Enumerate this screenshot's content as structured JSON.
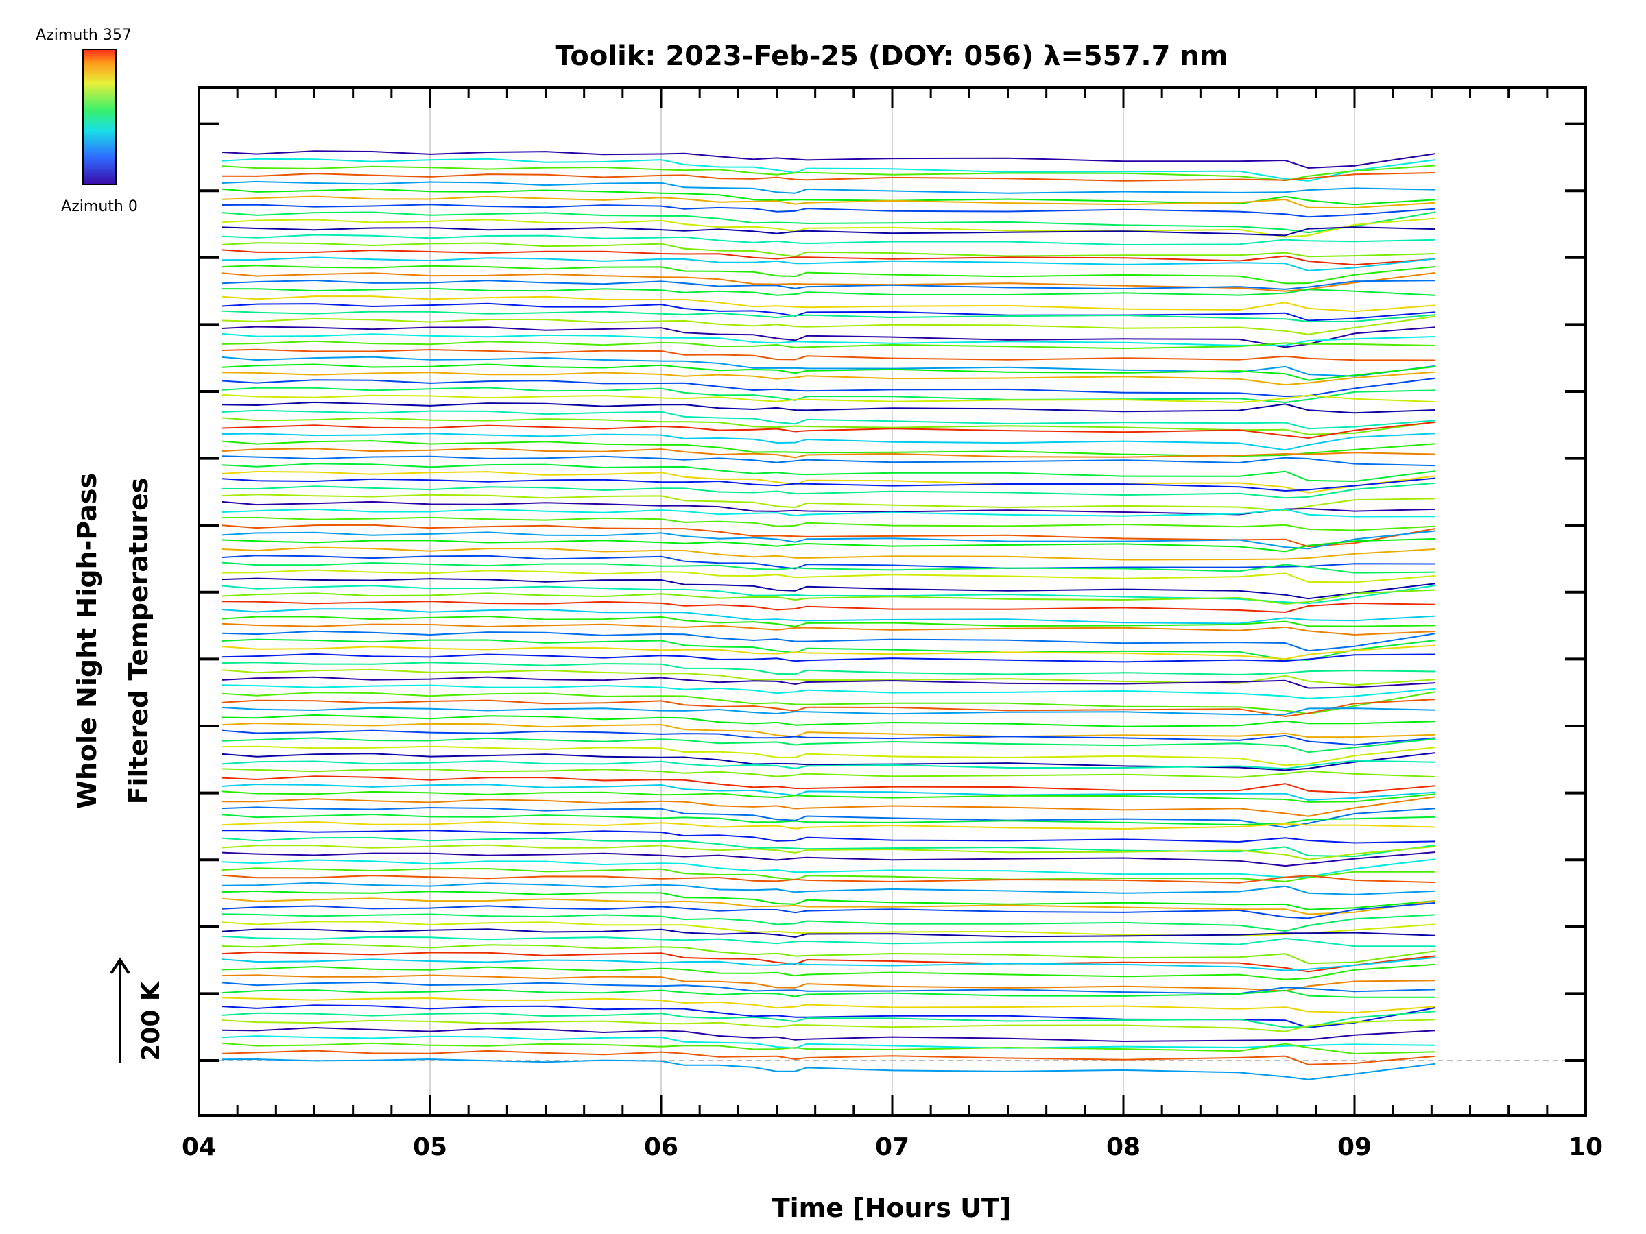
{
  "chart_data": {
    "type": "line",
    "title": "Toolik: 2023-Feb-25 (DOY: 056) λ=557.7 nm",
    "xlabel": "Time [Hours UT]",
    "ylabel_line1": "Whole Night High-Pass",
    "ylabel_line2": "Filtered Temperatures",
    "xlim": [
      4,
      10
    ],
    "xticks": [
      "04",
      "05",
      "06",
      "07",
      "08",
      "09",
      "10"
    ],
    "grid": true,
    "scale_bar_label": "200 K",
    "colorbar": {
      "top_label": "Azimuth 357",
      "bottom_label": "Azimuth 0",
      "colormap": "rainbow",
      "range": [
        0,
        357
      ]
    },
    "times": [
      4.1,
      4.25,
      4.5,
      4.75,
      5.0,
      5.25,
      5.5,
      5.75,
      6.0,
      6.1,
      6.25,
      6.4,
      6.5,
      6.58,
      6.63,
      7.0,
      7.5,
      8.0,
      8.5,
      8.7,
      8.8,
      9.0,
      9.35
    ],
    "series_shape": [
      0,
      0.6,
      -0.4,
      0.3,
      1.0,
      0.2,
      1.4,
      2.2,
      1.8,
      4.8,
      7.5,
      10.5,
      12.5,
      14.0,
      11.5,
      12.0,
      13.2,
      14.4,
      15.6,
      16.2,
      18.8,
      14.0,
      5.0
    ],
    "num_series": 120,
    "colors": {
      "axis": "#000000",
      "grid": "#c8c8c8",
      "baseline": "#bbbbbb",
      "background": "#ffffff"
    }
  }
}
